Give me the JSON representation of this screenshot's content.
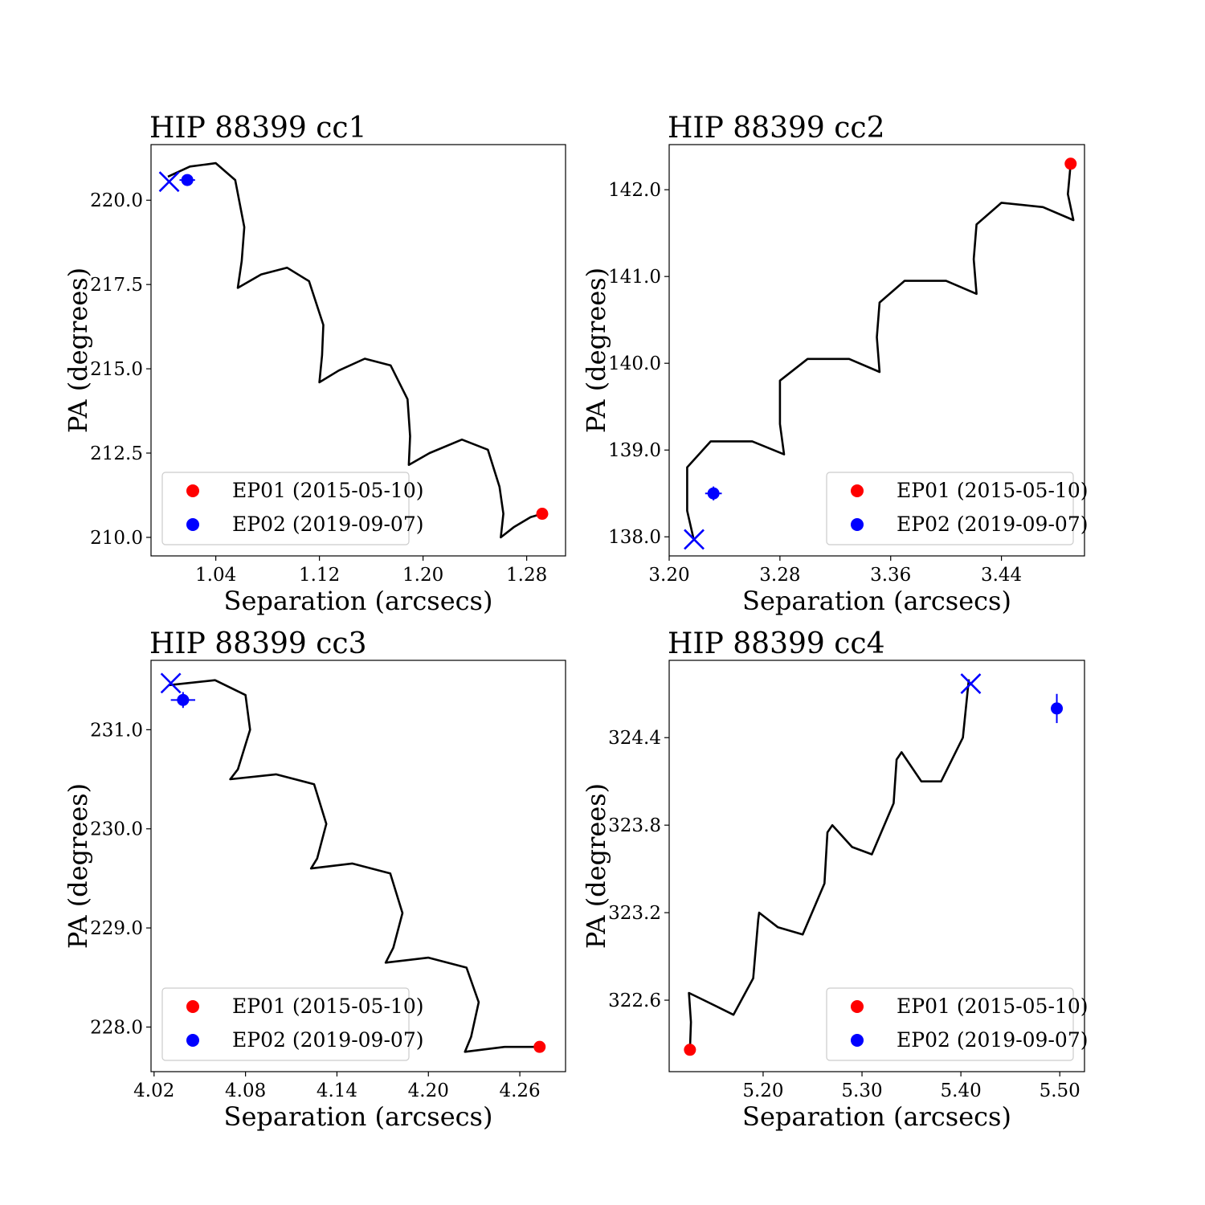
{
  "figure": {
    "background": "#ffffff",
    "colors": {
      "track": "#000000",
      "epoch1": "#ff0000",
      "epoch2": "#0000ff",
      "legend_border": "#cccccc"
    }
  },
  "chart_data": [
    {
      "type": "line",
      "title": "HIP 88399 cc1",
      "xlabel": "Separation (arcsecs)",
      "ylabel": "PA (degrees)",
      "xlim": [
        0.99,
        1.31
      ],
      "ylim": [
        209.45,
        221.65
      ],
      "xticks": [
        1.04,
        1.12,
        1.2,
        1.28
      ],
      "xtick_labels": [
        "1.04",
        "1.12",
        "1.20",
        "1.28"
      ],
      "yticks": [
        210.0,
        212.5,
        215.0,
        217.5,
        220.0
      ],
      "ytick_labels": [
        "210.0",
        "212.5",
        "215.0",
        "217.5",
        "220.0"
      ],
      "grid": false,
      "legend": {
        "placement": "lower-left",
        "entries": [
          "EP01 (2015-05-10)",
          "EP02 (2019-09-07)"
        ]
      },
      "track": {
        "name": "",
        "points": [
          [
            1.003,
            220.7
          ],
          [
            1.02,
            221.0
          ],
          [
            1.04,
            221.1
          ],
          [
            1.055,
            220.6
          ],
          [
            1.062,
            219.2
          ],
          [
            1.06,
            218.2
          ],
          [
            1.057,
            217.4
          ],
          [
            1.075,
            217.8
          ],
          [
            1.095,
            218.0
          ],
          [
            1.112,
            217.6
          ],
          [
            1.123,
            216.3
          ],
          [
            1.122,
            215.4
          ],
          [
            1.12,
            214.6
          ],
          [
            1.135,
            214.95
          ],
          [
            1.155,
            215.3
          ],
          [
            1.175,
            215.1
          ],
          [
            1.188,
            214.1
          ],
          [
            1.19,
            213.0
          ],
          [
            1.189,
            212.15
          ],
          [
            1.205,
            212.5
          ],
          [
            1.23,
            212.9
          ],
          [
            1.25,
            212.6
          ],
          [
            1.259,
            211.5
          ],
          [
            1.262,
            210.7
          ],
          [
            1.26,
            210.0
          ],
          [
            1.27,
            210.3
          ],
          [
            1.283,
            210.6
          ],
          [
            1.292,
            210.7
          ]
        ]
      },
      "epoch1": {
        "label": "EP01 (2015-05-10)",
        "x": 1.292,
        "y": 210.7
      },
      "epoch2": {
        "label": "EP02 (2019-09-07)",
        "x": 1.018,
        "y": 220.6,
        "xerr": 0.006,
        "yerr": 0.1
      },
      "predicted": {
        "x": 1.004,
        "y": 220.55
      }
    },
    {
      "type": "line",
      "title": "HIP 88399 cc2",
      "xlabel": "Separation (arcsecs)",
      "ylabel": "PA (degrees)",
      "xlim": [
        3.2,
        3.5
      ],
      "ylim": [
        137.78,
        142.52
      ],
      "xticks": [
        3.2,
        3.28,
        3.36,
        3.44
      ],
      "xtick_labels": [
        "3.20",
        "3.28",
        "3.36",
        "3.44"
      ],
      "yticks": [
        138.0,
        139.0,
        140.0,
        141.0,
        142.0
      ],
      "ytick_labels": [
        "138.0",
        "139.0",
        "140.0",
        "141.0",
        "142.0"
      ],
      "grid": false,
      "legend": {
        "placement": "lower-right",
        "entries": [
          "EP01 (2015-05-10)",
          "EP02 (2019-09-07)"
        ]
      },
      "track": {
        "name": "",
        "points": [
          [
            3.218,
            137.95
          ],
          [
            3.213,
            138.3
          ],
          [
            3.213,
            138.8
          ],
          [
            3.23,
            139.1
          ],
          [
            3.26,
            139.1
          ],
          [
            3.283,
            138.95
          ],
          [
            3.28,
            139.3
          ],
          [
            3.28,
            139.8
          ],
          [
            3.3,
            140.05
          ],
          [
            3.33,
            140.05
          ],
          [
            3.352,
            139.9
          ],
          [
            3.35,
            140.3
          ],
          [
            3.352,
            140.7
          ],
          [
            3.37,
            140.95
          ],
          [
            3.4,
            140.95
          ],
          [
            3.422,
            140.8
          ],
          [
            3.42,
            141.2
          ],
          [
            3.422,
            141.6
          ],
          [
            3.44,
            141.85
          ],
          [
            3.47,
            141.8
          ],
          [
            3.492,
            141.65
          ],
          [
            3.488,
            141.95
          ],
          [
            3.49,
            142.3
          ]
        ]
      },
      "epoch1": {
        "label": "EP01 (2015-05-10)",
        "x": 3.49,
        "y": 142.3
      },
      "epoch2": {
        "label": "EP02 (2019-09-07)",
        "x": 3.232,
        "y": 138.5,
        "xerr": 0.006,
        "yerr": 0.08
      },
      "predicted": {
        "x": 3.218,
        "y": 137.97
      }
    },
    {
      "type": "line",
      "title": "HIP 88399 cc3",
      "xlabel": "Separation (arcsecs)",
      "ylabel": "PA (degrees)",
      "xlim": [
        4.018,
        4.29
      ],
      "ylim": [
        227.55,
        231.7
      ],
      "xticks": [
        4.02,
        4.08,
        4.14,
        4.2,
        4.26
      ],
      "xtick_labels": [
        "4.02",
        "4.08",
        "4.14",
        "4.20",
        "4.26"
      ],
      "yticks": [
        228.0,
        229.0,
        230.0,
        231.0
      ],
      "ytick_labels": [
        "228.0",
        "229.0",
        "230.0",
        "231.0"
      ],
      "grid": false,
      "legend": {
        "placement": "lower-left",
        "entries": [
          "EP01 (2015-05-10)",
          "EP02 (2019-09-07)"
        ]
      },
      "track": {
        "name": "",
        "points": [
          [
            4.03,
            231.45
          ],
          [
            4.06,
            231.5
          ],
          [
            4.08,
            231.35
          ],
          [
            4.083,
            231.0
          ],
          [
            4.075,
            230.6
          ],
          [
            4.07,
            230.5
          ],
          [
            4.1,
            230.55
          ],
          [
            4.125,
            230.45
          ],
          [
            4.133,
            230.05
          ],
          [
            4.127,
            229.7
          ],
          [
            4.123,
            229.6
          ],
          [
            4.15,
            229.65
          ],
          [
            4.175,
            229.55
          ],
          [
            4.183,
            229.15
          ],
          [
            4.177,
            228.8
          ],
          [
            4.172,
            228.65
          ],
          [
            4.2,
            228.7
          ],
          [
            4.225,
            228.6
          ],
          [
            4.233,
            228.25
          ],
          [
            4.228,
            227.9
          ],
          [
            4.224,
            227.75
          ],
          [
            4.25,
            227.8
          ],
          [
            4.273,
            227.8
          ]
        ]
      },
      "epoch1": {
        "label": "EP01 (2015-05-10)",
        "x": 4.273,
        "y": 227.8
      },
      "epoch2": {
        "label": "EP02 (2019-09-07)",
        "x": 4.039,
        "y": 231.3,
        "xerr": 0.008,
        "yerr": 0.08
      },
      "predicted": {
        "x": 4.031,
        "y": 231.47
      }
    },
    {
      "type": "line",
      "title": "HIP 88399 cc4",
      "xlabel": "Separation (arcsecs)",
      "ylabel": "PA (degrees)",
      "xlim": [
        5.105,
        5.525
      ],
      "ylim": [
        322.11,
        324.93
      ],
      "xticks": [
        5.2,
        5.3,
        5.4,
        5.5
      ],
      "xtick_labels": [
        "5.20",
        "5.30",
        "5.40",
        "5.50"
      ],
      "yticks": [
        322.6,
        323.2,
        323.8,
        324.4
      ],
      "ytick_labels": [
        "322.6",
        "323.2",
        "323.8",
        "324.4"
      ],
      "grid": false,
      "legend": {
        "placement": "lower-right",
        "entries": [
          "EP01 (2015-05-10)",
          "EP02 (2019-09-07)"
        ]
      },
      "track": {
        "name": "",
        "points": [
          [
            5.126,
            322.25
          ],
          [
            5.127,
            322.45
          ],
          [
            5.125,
            322.65
          ],
          [
            5.14,
            322.6
          ],
          [
            5.17,
            322.5
          ],
          [
            5.19,
            322.75
          ],
          [
            5.195,
            323.15
          ],
          [
            5.196,
            323.2
          ],
          [
            5.215,
            323.1
          ],
          [
            5.24,
            323.05
          ],
          [
            5.262,
            323.4
          ],
          [
            5.265,
            323.75
          ],
          [
            5.27,
            323.8
          ],
          [
            5.29,
            323.65
          ],
          [
            5.31,
            323.6
          ],
          [
            5.332,
            323.95
          ],
          [
            5.335,
            324.25
          ],
          [
            5.34,
            324.3
          ],
          [
            5.36,
            324.1
          ],
          [
            5.38,
            324.1
          ],
          [
            5.402,
            324.4
          ],
          [
            5.408,
            324.8
          ]
        ]
      },
      "epoch1": {
        "label": "EP01 (2015-05-10)",
        "x": 5.126,
        "y": 322.26
      },
      "epoch2": {
        "label": "EP02 (2019-09-07)",
        "x": 5.497,
        "y": 324.6,
        "xerr": 0.003,
        "yerr": 0.1
      },
      "predicted": {
        "x": 5.41,
        "y": 324.77
      }
    }
  ]
}
